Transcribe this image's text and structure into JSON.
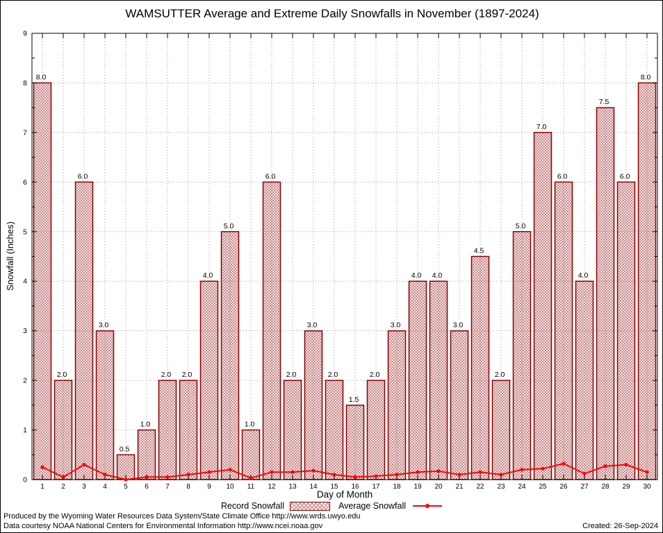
{
  "chart_data": {
    "type": "bar",
    "title": "WAMSUTTER Average and Extreme Daily Snowfalls in November (1897-2024)",
    "xlabel": "Day of Month",
    "ylabel": "Snowfall (Inches)",
    "ylim": [
      0,
      9
    ],
    "yticks": [
      0,
      1,
      2,
      3,
      4,
      5,
      6,
      7,
      8,
      9
    ],
    "grid": true,
    "legend_position": "bottom",
    "hatch_color": "#c47a7a",
    "categories": [
      1,
      2,
      3,
      4,
      5,
      6,
      7,
      8,
      9,
      10,
      11,
      12,
      13,
      14,
      15,
      16,
      17,
      18,
      19,
      20,
      21,
      22,
      23,
      24,
      25,
      26,
      27,
      28,
      29,
      30
    ],
    "series": [
      {
        "name": "Record Snowfall",
        "type": "bar",
        "color": "#8b0000",
        "values": [
          8.0,
          2.0,
          6.0,
          3.0,
          0.5,
          1.0,
          2.0,
          2.0,
          4.0,
          5.0,
          1.0,
          6.0,
          2.0,
          3.0,
          2.0,
          1.5,
          2.0,
          3.0,
          4.0,
          4.0,
          3.0,
          4.5,
          2.0,
          5.0,
          7.0,
          6.0,
          4.0,
          7.5,
          6.0,
          8.0
        ]
      },
      {
        "name": "Average Snowfall",
        "type": "line",
        "color": "#ff0000",
        "values": [
          0.25,
          0.05,
          0.3,
          0.1,
          0.0,
          0.05,
          0.05,
          0.1,
          0.15,
          0.2,
          0.03,
          0.15,
          0.15,
          0.18,
          0.1,
          0.05,
          0.07,
          0.1,
          0.15,
          0.17,
          0.1,
          0.15,
          0.1,
          0.2,
          0.22,
          0.32,
          0.12,
          0.27,
          0.3,
          0.15
        ]
      }
    ]
  },
  "footer": {
    "line1": "Produced by the Wyoming Water Resources Data System/State Climate Office http://www.wrds.uwyo.edu",
    "line2": "Data courtesy NOAA National Centers for Environmental Information http://www.ncei.noaa.gov",
    "created": "Created: 26-Sep-2024"
  }
}
